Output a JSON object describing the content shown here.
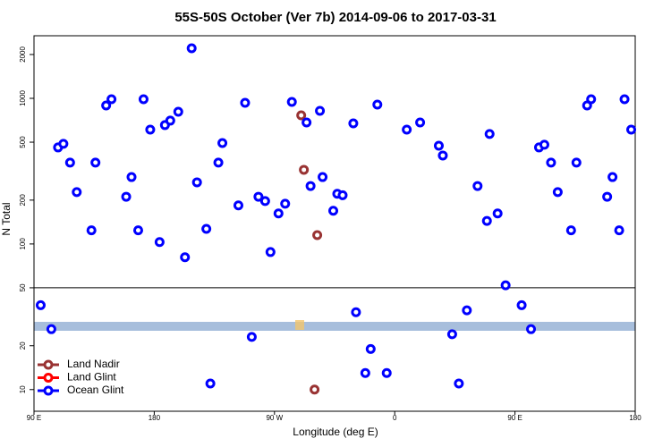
{
  "chart_data": {
    "type": "scatter",
    "title": "55S-50S October (Ver 7b)   2014-09-06 to 2017-03-31",
    "x_label": "Longitude (deg E)",
    "y_label": "N Total",
    "log_y": true,
    "xlim": [
      90,
      540
    ],
    "ylim": [
      7.1,
      2690
    ],
    "xticks": [
      {
        "value": 90,
        "label": "90 E"
      },
      180,
      {
        "value": 270,
        "label": "90 W"
      },
      {
        "value": 360,
        "label": "0"
      },
      {
        "value": 450,
        "label": "90 E"
      },
      {
        "value": 540,
        "label": "180"
      }
    ],
    "yticks": [
      10,
      20,
      50,
      100,
      200,
      500,
      1000,
      2000
    ],
    "hline": 50,
    "legend": "lower left",
    "series": [
      {
        "name": "Land Nadir",
        "color": "#993333",
        "x": [
          290,
          292,
          302,
          300
        ],
        "values": [
          764,
          323,
          115,
          10
        ]
      },
      {
        "name": "Land Glint",
        "color": "#ff0000",
        "x": [],
        "values": []
      },
      {
        "name": "Ocean Glint",
        "color": "#0000ff",
        "x": [
          95,
          103,
          108,
          112,
          117,
          122,
          133,
          136,
          144,
          148,
          159,
          163,
          168,
          172,
          177,
          184,
          188,
          192,
          198,
          203,
          208,
          212,
          219,
          222,
          228,
          231,
          243,
          248,
          253,
          258,
          263,
          267,
          273,
          278,
          283,
          294,
          297,
          304,
          306,
          314,
          317,
          321,
          329,
          331,
          338,
          342,
          347,
          354,
          369,
          379,
          393,
          396,
          403,
          408,
          414,
          422,
          429,
          431,
          437,
          443,
          455,
          462,
          468,
          472,
          477,
          482,
          492,
          496,
          504,
          507,
          519,
          523,
          528,
          532,
          537
        ],
        "values": [
          38,
          26,
          460,
          487,
          362,
          227,
          124,
          362,
          893,
          986,
          211,
          288,
          124,
          986,
          610,
          103,
          655,
          703,
          809,
          81,
          2207,
          265,
          127,
          11,
          362,
          493,
          184,
          932,
          23,
          211,
          197,
          88,
          162,
          189,
          945,
          683,
          250,
          821,
          288,
          169,
          221,
          216,
          673,
          34,
          13,
          19,
          906,
          13,
          610,
          683,
          473,
          405,
          24,
          11,
          35,
          250,
          144,
          569,
          162,
          52,
          38,
          26,
          460,
          480,
          362,
          227,
          124,
          362,
          893,
          986,
          211,
          288,
          124,
          986,
          610
        ]
      }
    ]
  }
}
